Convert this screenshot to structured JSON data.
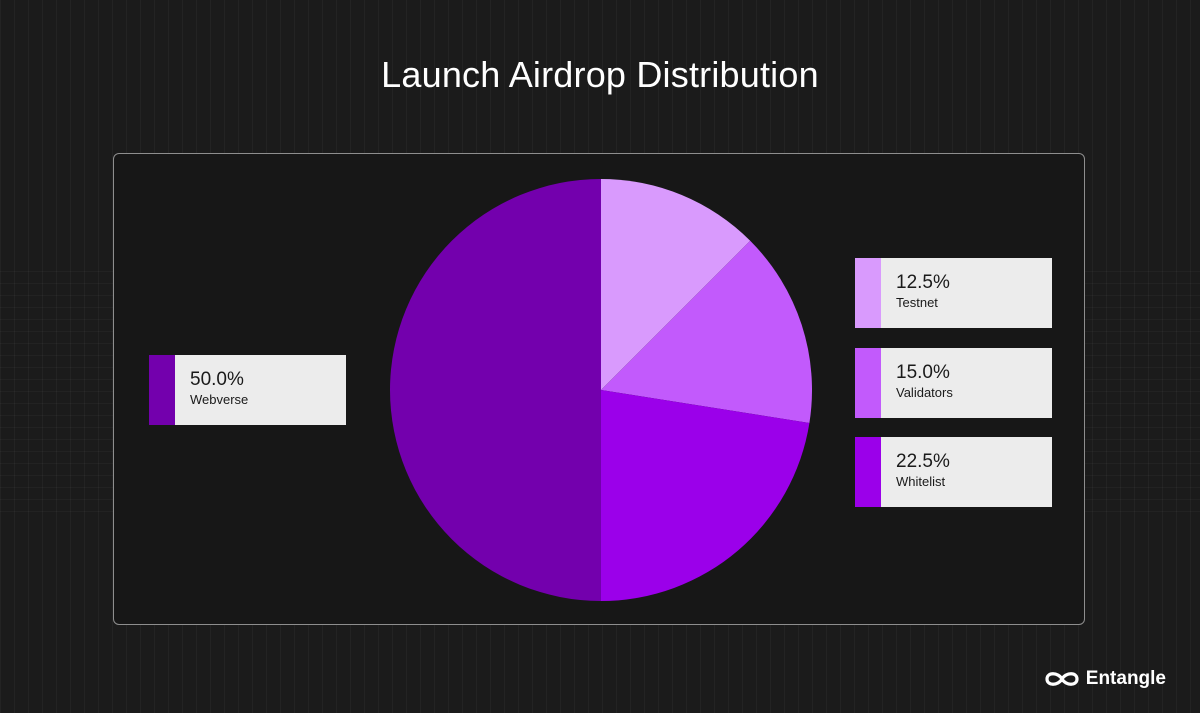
{
  "title": "Launch Airdrop Distribution",
  "brand": {
    "name": "Entangle",
    "icon": "infinity-icon"
  },
  "chart_data": {
    "type": "pie",
    "title": "Launch Airdrop Distribution",
    "slices": [
      {
        "label": "Testnet",
        "value": 12.5,
        "display": "12.5%",
        "color": "#d99afd"
      },
      {
        "label": "Validators",
        "value": 15.0,
        "display": "15.0%",
        "color": "#c25afc"
      },
      {
        "label": "Whitelist",
        "value": 22.5,
        "display": "22.5%",
        "color": "#9b00ea"
      },
      {
        "label": "Webverse",
        "value": 50.0,
        "display": "50.0%",
        "color": "#7300ad"
      }
    ]
  }
}
